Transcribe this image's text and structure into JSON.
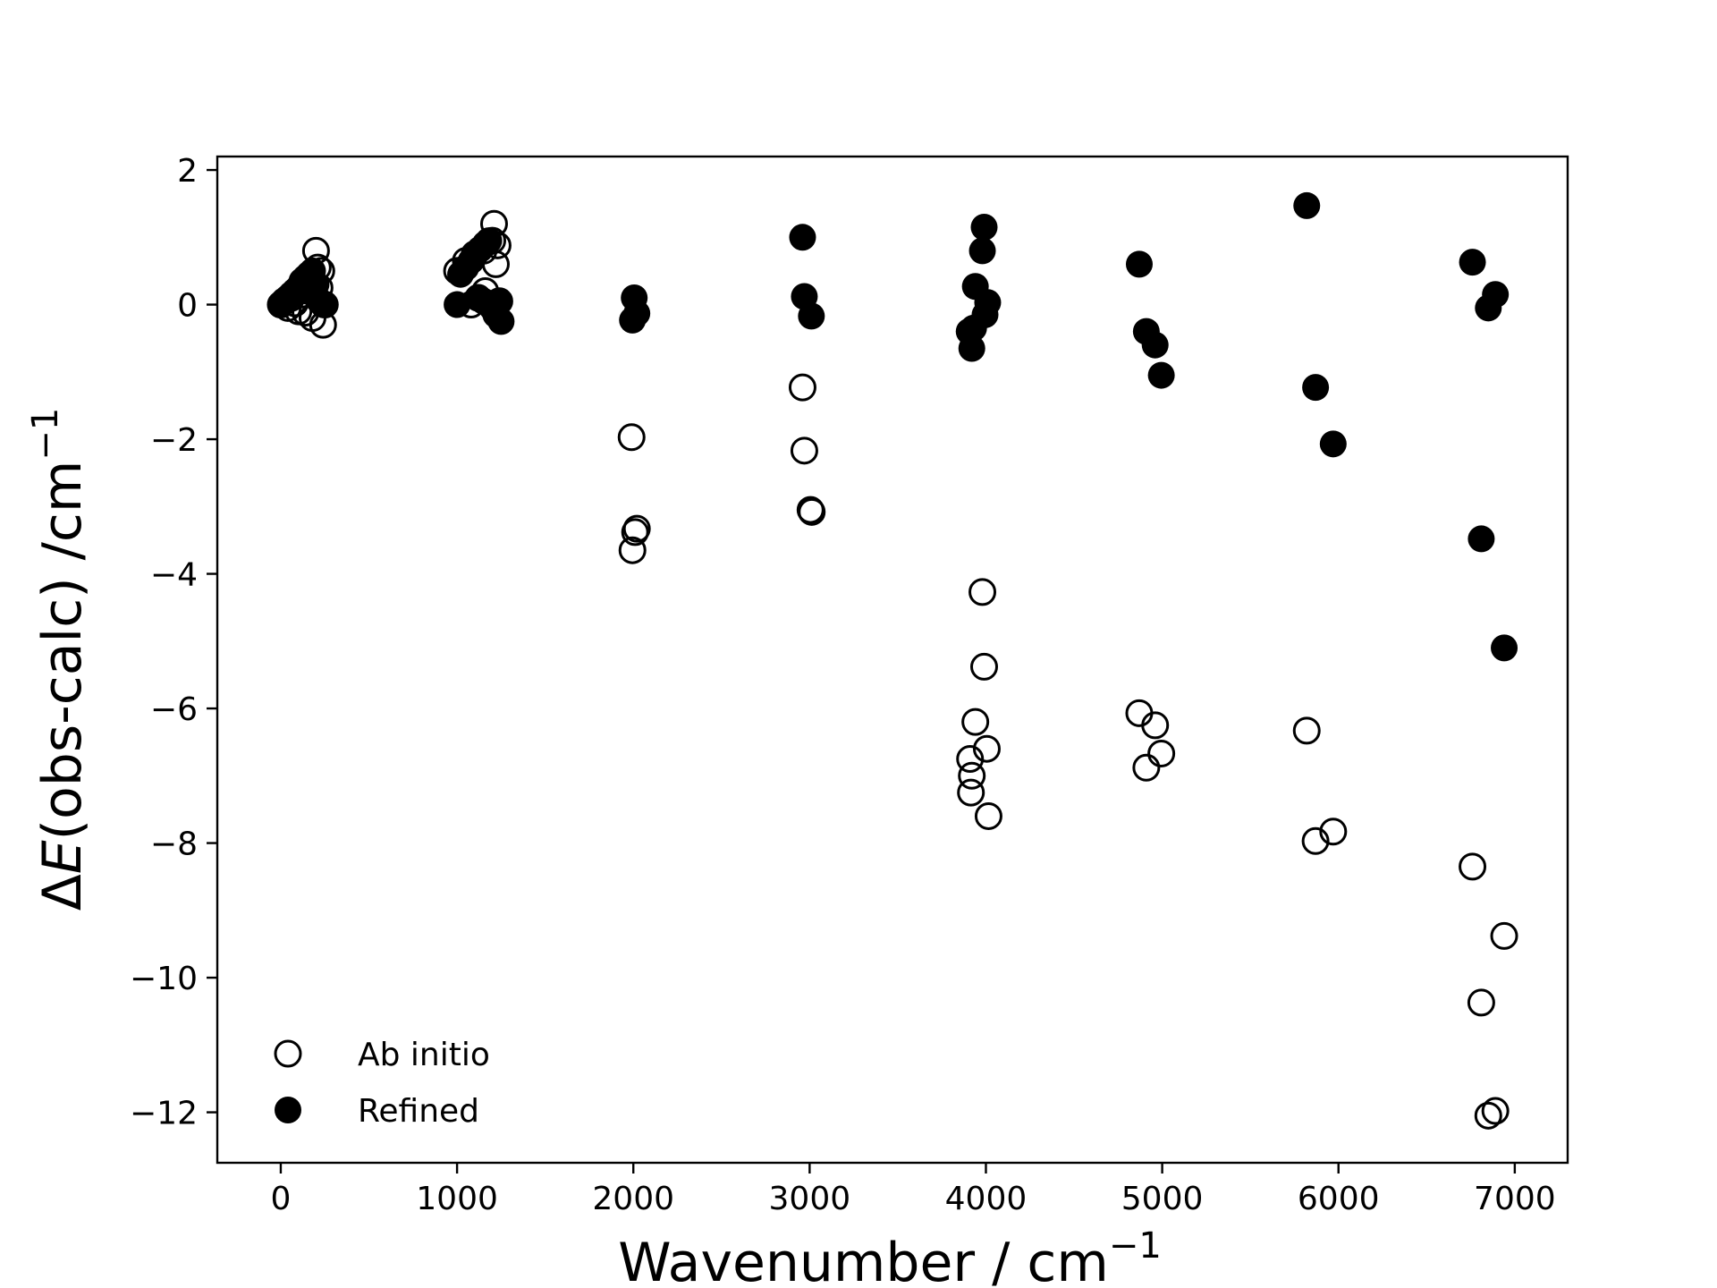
{
  "chart_data": {
    "type": "scatter",
    "xlabel": "Wavenumber / cm",
    "xlabel_sup": "−1",
    "ylabel_prefix": "Δ",
    "ylabel_italic": "E",
    "ylabel_rest": "(obs-calc) /cm",
    "ylabel_sup": "−1",
    "xlim": [
      -360,
      7300
    ],
    "ylim": [
      -12.75,
      2.2
    ],
    "x_ticks": [
      0,
      1000,
      2000,
      3000,
      4000,
      5000,
      6000,
      7000
    ],
    "y_ticks": [
      2,
      0,
      -2,
      -4,
      -6,
      -8,
      -10,
      -12
    ],
    "x_tick_labels": [
      "0",
      "1000",
      "2000",
      "3000",
      "4000",
      "5000",
      "6000",
      "7000"
    ],
    "y_tick_labels": [
      "2",
      "0",
      "−2",
      "−4",
      "−6",
      "−8",
      "−10",
      "−12"
    ],
    "grid": false,
    "legend": {
      "position": "lower-left",
      "entries": [
        {
          "label": "Ab initio",
          "marker": "open-circle"
        },
        {
          "label": "Refined",
          "marker": "filled-circle"
        }
      ]
    },
    "series": [
      {
        "name": "Ab initio",
        "marker": "open-circle",
        "color": "#000000",
        "points": [
          [
            0,
            0.0
          ],
          [
            20,
            0.05
          ],
          [
            40,
            -0.05
          ],
          [
            60,
            0.1
          ],
          [
            80,
            0.02
          ],
          [
            100,
            -0.1
          ],
          [
            120,
            0.15
          ],
          [
            140,
            -0.12
          ],
          [
            160,
            0.2
          ],
          [
            180,
            -0.2
          ],
          [
            200,
            0.8
          ],
          [
            210,
            0.55
          ],
          [
            220,
            0.25
          ],
          [
            230,
            0.5
          ],
          [
            240,
            -0.3
          ],
          [
            250,
            0.0
          ],
          [
            1000,
            0.5
          ],
          [
            1050,
            0.65
          ],
          [
            1100,
            0.75
          ],
          [
            1150,
            0.8
          ],
          [
            1200,
            0.95
          ],
          [
            1210,
            1.2
          ],
          [
            1230,
            0.88
          ],
          [
            1220,
            0.6
          ],
          [
            1240,
            0.05
          ],
          [
            1160,
            0.2
          ],
          [
            1120,
            0.1
          ],
          [
            1080,
            0.0
          ],
          [
            1990,
            -1.97
          ],
          [
            1995,
            -3.65
          ],
          [
            2010,
            -3.38
          ],
          [
            2020,
            -3.33
          ],
          [
            2960,
            -1.23
          ],
          [
            2970,
            -2.17
          ],
          [
            3005,
            -3.05
          ],
          [
            3012,
            -3.08
          ],
          [
            3980,
            -4.27
          ],
          [
            3990,
            -5.38
          ],
          [
            3940,
            -6.2
          ],
          [
            3910,
            -6.75
          ],
          [
            3920,
            -7.0
          ],
          [
            3915,
            -7.25
          ],
          [
            4005,
            -6.6
          ],
          [
            4015,
            -7.6
          ],
          [
            4870,
            -6.07
          ],
          [
            4910,
            -6.88
          ],
          [
            4960,
            -6.25
          ],
          [
            4995,
            -6.67
          ],
          [
            5820,
            -6.33
          ],
          [
            5870,
            -7.97
          ],
          [
            5970,
            -7.83
          ],
          [
            6760,
            -8.35
          ],
          [
            6810,
            -10.37
          ],
          [
            6850,
            -12.05
          ],
          [
            6890,
            -11.98
          ],
          [
            6940,
            -9.38
          ]
        ]
      },
      {
        "name": "Refined",
        "marker": "filled-circle",
        "color": "#000000",
        "points": [
          [
            0,
            0.0
          ],
          [
            20,
            0.05
          ],
          [
            40,
            0.1
          ],
          [
            60,
            0.15
          ],
          [
            80,
            0.2
          ],
          [
            100,
            0.25
          ],
          [
            120,
            0.35
          ],
          [
            140,
            0.4
          ],
          [
            160,
            0.45
          ],
          [
            180,
            0.5
          ],
          [
            200,
            0.3
          ],
          [
            220,
            0.05
          ],
          [
            240,
            0.0
          ],
          [
            1000,
            0.0
          ],
          [
            1020,
            0.45
          ],
          [
            1050,
            0.55
          ],
          [
            1080,
            0.65
          ],
          [
            1100,
            0.75
          ],
          [
            1130,
            0.82
          ],
          [
            1160,
            0.9
          ],
          [
            1180,
            0.95
          ],
          [
            1120,
            0.1
          ],
          [
            1150,
            0.05
          ],
          [
            1200,
            -0.05
          ],
          [
            1220,
            -0.15
          ],
          [
            1250,
            -0.25
          ],
          [
            1240,
            0.05
          ],
          [
            1995,
            -0.23
          ],
          [
            2005,
            0.1
          ],
          [
            2020,
            -0.13
          ],
          [
            2960,
            1.0
          ],
          [
            2970,
            0.12
          ],
          [
            3010,
            -0.17
          ],
          [
            3990,
            1.15
          ],
          [
            3980,
            0.8
          ],
          [
            3940,
            0.27
          ],
          [
            4010,
            0.03
          ],
          [
            3995,
            -0.15
          ],
          [
            3930,
            -0.35
          ],
          [
            3905,
            -0.4
          ],
          [
            3920,
            -0.65
          ],
          [
            4870,
            0.6
          ],
          [
            4910,
            -0.4
          ],
          [
            4960,
            -0.6
          ],
          [
            4995,
            -1.05
          ],
          [
            5820,
            1.47
          ],
          [
            5870,
            -1.23
          ],
          [
            5970,
            -2.07
          ],
          [
            6760,
            0.63
          ],
          [
            6810,
            -3.48
          ],
          [
            6850,
            -0.05
          ],
          [
            6890,
            0.15
          ],
          [
            6940,
            -5.1
          ]
        ]
      }
    ]
  }
}
